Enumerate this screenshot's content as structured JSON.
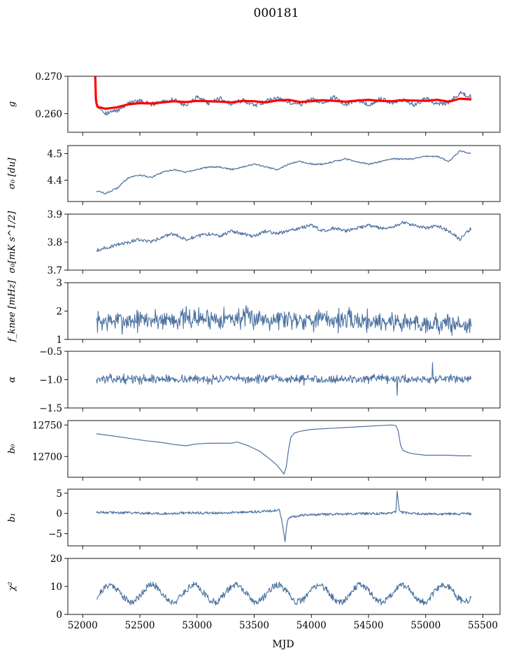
{
  "figure": {
    "title": "000181",
    "xlabel": "MJD",
    "x_ticks": [
      52000,
      52500,
      53000,
      53500,
      54000,
      54500,
      55000,
      55500
    ],
    "xlim": [
      51870,
      55650
    ],
    "line_color": "#4c72a0",
    "fit_color": "#ff0000"
  },
  "chart_data": [
    {
      "type": "line",
      "ylabel": "g",
      "ylim": [
        0.255,
        0.27
      ],
      "yticks": [
        0.26,
        0.27
      ],
      "ytick_labels": [
        "0.260",
        "0.270"
      ],
      "series": [
        {
          "x": [
            52120,
            52200,
            52300,
            52400,
            52500,
            52600,
            52700,
            52800,
            52900,
            53000,
            53100,
            53200,
            53300,
            53400,
            53500,
            53600,
            53700,
            53800,
            53900,
            54000,
            54100,
            54200,
            54300,
            54400,
            54500,
            54600,
            54700,
            54800,
            54900,
            55000,
            55100,
            55200,
            55300,
            55400
          ],
          "values": [
            0.2625,
            0.2601,
            0.2608,
            0.2628,
            0.2633,
            0.2625,
            0.2632,
            0.2638,
            0.2621,
            0.2643,
            0.2628,
            0.2641,
            0.2625,
            0.2636,
            0.2621,
            0.2633,
            0.2642,
            0.263,
            0.2624,
            0.2639,
            0.2629,
            0.2643,
            0.2625,
            0.2638,
            0.2622,
            0.264,
            0.2629,
            0.2637,
            0.2624,
            0.2641,
            0.2626,
            0.2629,
            0.2655,
            0.2645
          ]
        },
        {
          "x": [
            52110,
            52115,
            52120,
            52130,
            52200,
            52300,
            52400,
            52500,
            52600,
            52700,
            52800,
            52900,
            53000,
            53100,
            53200,
            53300,
            53400,
            53500,
            53600,
            53700,
            53800,
            53900,
            54000,
            54100,
            54200,
            54300,
            54400,
            54500,
            54600,
            54700,
            54800,
            54900,
            55000,
            55100,
            55200,
            55300,
            55400
          ],
          "values": [
            0.27,
            0.264,
            0.2628,
            0.2618,
            0.2613,
            0.2617,
            0.2625,
            0.2628,
            0.2627,
            0.263,
            0.2633,
            0.2631,
            0.2634,
            0.2633,
            0.2632,
            0.263,
            0.2634,
            0.2633,
            0.263,
            0.2635,
            0.2637,
            0.2631,
            0.2633,
            0.2636,
            0.2634,
            0.2632,
            0.2635,
            0.2637,
            0.2634,
            0.2633,
            0.2636,
            0.2635,
            0.2634,
            0.2637,
            0.2632,
            0.264,
            0.2638
          ]
        }
      ]
    },
    {
      "type": "line",
      "ylabel": "σ₀ [du]",
      "ylim": [
        4.32,
        4.53
      ],
      "yticks": [
        4.4,
        4.5
      ],
      "ytick_labels": [
        "4.4",
        "4.5"
      ],
      "series": [
        {
          "x": [
            52120,
            52200,
            52300,
            52400,
            52500,
            52600,
            52700,
            52800,
            52900,
            53000,
            53100,
            53200,
            53300,
            53400,
            53500,
            53600,
            53700,
            53800,
            53900,
            54000,
            54100,
            54200,
            54300,
            54400,
            54500,
            54600,
            54700,
            54800,
            54900,
            55000,
            55100,
            55200,
            55300,
            55400
          ],
          "values": [
            4.36,
            4.35,
            4.37,
            4.41,
            4.42,
            4.41,
            4.43,
            4.44,
            4.43,
            4.44,
            4.45,
            4.45,
            4.44,
            4.45,
            4.46,
            4.45,
            4.44,
            4.46,
            4.47,
            4.46,
            4.46,
            4.47,
            4.48,
            4.47,
            4.46,
            4.47,
            4.48,
            4.48,
            4.48,
            4.49,
            4.49,
            4.47,
            4.51,
            4.5
          ]
        }
      ]
    },
    {
      "type": "line",
      "ylabel": "σ₀[mK s^1/2]",
      "ylim": [
        3.7,
        3.9
      ],
      "yticks": [
        3.7,
        3.8,
        3.9
      ],
      "ytick_labels": [
        "3.7",
        "3.8",
        "3.9"
      ],
      "series": [
        {
          "x": [
            52120,
            52200,
            52300,
            52400,
            52500,
            52600,
            52700,
            52800,
            52900,
            53000,
            53100,
            53200,
            53300,
            53400,
            53500,
            53600,
            53700,
            53800,
            53900,
            54000,
            54100,
            54200,
            54300,
            54400,
            54500,
            54600,
            54700,
            54800,
            54900,
            55000,
            55100,
            55200,
            55300,
            55400
          ],
          "values": [
            3.77,
            3.78,
            3.79,
            3.8,
            3.81,
            3.8,
            3.82,
            3.83,
            3.81,
            3.82,
            3.83,
            3.82,
            3.84,
            3.83,
            3.82,
            3.84,
            3.83,
            3.84,
            3.85,
            3.86,
            3.84,
            3.85,
            3.84,
            3.85,
            3.86,
            3.85,
            3.85,
            3.87,
            3.86,
            3.85,
            3.86,
            3.84,
            3.81,
            3.85
          ]
        }
      ]
    },
    {
      "type": "line",
      "ylabel": "f_knee [mHz]",
      "ylim": [
        1,
        3
      ],
      "yticks": [
        1,
        2,
        3
      ],
      "ytick_labels": [
        "1",
        "2",
        "3"
      ],
      "noise": {
        "x_start": 52120,
        "x_end": 55400,
        "step": 5,
        "mean": 1.6,
        "amplitude": 0.35,
        "seed": 7
      }
    },
    {
      "type": "line",
      "ylabel": "α",
      "ylim": [
        -1.5,
        -0.5
      ],
      "yticks": [
        -1.5,
        -1.0,
        -0.5
      ],
      "ytick_labels": [
        "−1.5",
        "−1.0",
        "−0.5"
      ],
      "noise": {
        "x_start": 52120,
        "x_end": 55400,
        "step": 5,
        "mean": -0.99,
        "amplitude": 0.07,
        "seed": 13
      },
      "spikes": [
        {
          "x": 55060,
          "value": -0.7
        },
        {
          "x": 54750,
          "value": -1.28
        }
      ]
    },
    {
      "type": "line",
      "ylabel": "b₀",
      "ylim": [
        12667,
        12757
      ],
      "yticks": [
        12700,
        12750
      ],
      "ytick_labels": [
        "12700",
        "12750"
      ],
      "series": [
        {
          "x": [
            52120,
            52250,
            52400,
            52550,
            52700,
            52800,
            52900,
            53000,
            53100,
            53200,
            53300,
            53350,
            53450,
            53550,
            53650,
            53700,
            53740,
            53760,
            53780,
            53800,
            53820,
            53850,
            53900,
            54000,
            54200,
            54400,
            54600,
            54700,
            54740,
            54760,
            54780,
            54800,
            54850,
            54900,
            55000,
            55100,
            55200,
            55300,
            55400
          ],
          "values": [
            12736,
            12733,
            12729,
            12725,
            12722,
            12719,
            12717,
            12720,
            12721,
            12721,
            12721,
            12723,
            12717,
            12708,
            12694,
            12686,
            12677,
            12672,
            12683,
            12710,
            12730,
            12737,
            12740,
            12743,
            12745,
            12747,
            12749,
            12750,
            12749,
            12740,
            12718,
            12710,
            12706,
            12704,
            12702,
            12702,
            12702,
            12701,
            12701
          ]
        }
      ]
    },
    {
      "type": "line",
      "ylabel": "b₁",
      "ylim": [
        -8,
        6
      ],
      "yticks": [
        -5,
        0,
        5
      ],
      "ytick_labels": [
        "−5",
        "0",
        "5"
      ],
      "series": [
        {
          "x": [
            52120,
            52300,
            52500,
            52700,
            52900,
            53100,
            53300,
            53500,
            53650,
            53700,
            53720,
            53740,
            53760,
            53770,
            53780,
            53790,
            53800,
            53850,
            53900,
            54000,
            54200,
            54400,
            54600,
            54700,
            54740,
            54750,
            54760,
            54770,
            54800,
            54900,
            55000,
            55200,
            55400
          ],
          "values": [
            0.3,
            0.2,
            0.1,
            0.0,
            0.1,
            0.1,
            0.2,
            0.4,
            0.6,
            0.8,
            0.9,
            -1.5,
            -5.0,
            -7.0,
            -4.0,
            -2.0,
            -1.2,
            -0.8,
            -0.5,
            -0.3,
            -0.2,
            -0.1,
            0.0,
            0.1,
            0.5,
            5.5,
            3.0,
            1.0,
            0.2,
            0.0,
            -0.1,
            -0.1,
            -0.1
          ]
        }
      ]
    },
    {
      "type": "line",
      "ylabel": "χ²",
      "ylim": [
        0,
        20
      ],
      "yticks": [
        0,
        10,
        20
      ],
      "ytick_labels": [
        "0",
        "10",
        "20"
      ],
      "oscillation": {
        "x_start": 52120,
        "x_end": 55400,
        "step": 5,
        "mean": 7.5,
        "amplitude": 3.0,
        "period": 365,
        "noise": 1.2,
        "seed": 21
      }
    }
  ]
}
